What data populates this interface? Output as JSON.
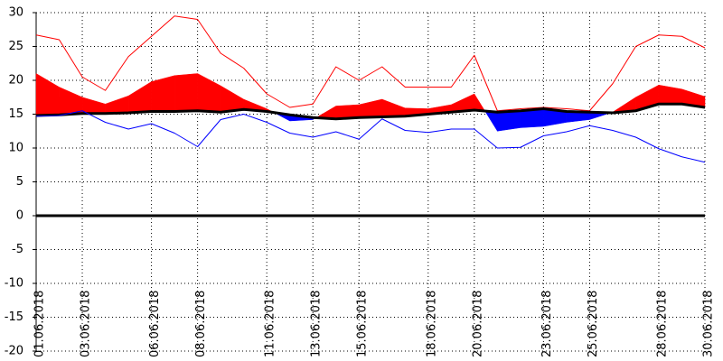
{
  "chart_data": {
    "type": "line",
    "categories": [
      "01.06.2018",
      null,
      "03.06.2018",
      null,
      null,
      "06.06.2018",
      null,
      "08.06.2018",
      null,
      null,
      "11.06.2018",
      null,
      "13.06.2018",
      null,
      "15.06.2018",
      null,
      null,
      "18.06.2018",
      null,
      "20.06.2018",
      null,
      null,
      "23.06.2018",
      null,
      "25.06.2018",
      null,
      null,
      "28.06.2018",
      null,
      "30.06.2018"
    ],
    "series": [
      {
        "color": "#ff0000",
        "width": 1,
        "values": [
          26.7,
          26,
          20.5,
          18.5,
          23.5,
          26.5,
          29.5,
          29,
          24,
          21.8,
          18,
          16,
          16.5,
          22,
          20,
          22,
          19,
          19,
          19,
          23.7,
          15.5,
          15.8,
          16,
          15.8,
          15.5,
          19.5,
          25,
          26.7,
          26.5,
          24.8
        ]
      },
      {
        "color": "#ff0000",
        "width": 1,
        "values": [
          21,
          19,
          17.5,
          16.5,
          17.7,
          19.8,
          20.7,
          21,
          19.2,
          17.2,
          15.8,
          14,
          14.2,
          16.2,
          16.4,
          17.2,
          15.9,
          15.8,
          16.4,
          18,
          12.5,
          13,
          13.2,
          13.8,
          14.2,
          15.3,
          17.5,
          19.3,
          18.7,
          17.6
        ]
      },
      {
        "color": "#000000",
        "width": 3,
        "values": [
          14.8,
          14.9,
          15.1,
          15.1,
          15.2,
          15.4,
          15.4,
          15.5,
          15.3,
          15.7,
          15.4,
          14.9,
          14.5,
          14.3,
          14.5,
          14.6,
          14.7,
          15.0,
          15.3,
          15.6,
          15.3,
          15.5,
          15.8,
          15.4,
          15.3,
          15.2,
          15.5,
          16.5,
          16.5,
          16.0
        ]
      },
      {
        "color": "#0000ff",
        "width": 1,
        "values": [
          14.7,
          14.8,
          15.5,
          13.8,
          12.8,
          13.6,
          12.2,
          10.2,
          14.2,
          15,
          13.8,
          12.2,
          11.6,
          12.4,
          11.3,
          14.3,
          12.6,
          12.3,
          12.8,
          12.8,
          10,
          10.1,
          11.8,
          12.4,
          13.3,
          12.6,
          11.6,
          9.9,
          8.7,
          7.9
        ]
      }
    ],
    "fill_between": {
      "series": [
        1,
        2
      ],
      "above_color": "#ff0000",
      "below_color": "#0000ff"
    },
    "ylim": [
      -20,
      30
    ],
    "yticks": [
      -20,
      -15,
      -10,
      -5,
      0,
      5,
      10,
      15,
      20,
      25,
      30
    ],
    "zero_line": true,
    "grid": true
  }
}
